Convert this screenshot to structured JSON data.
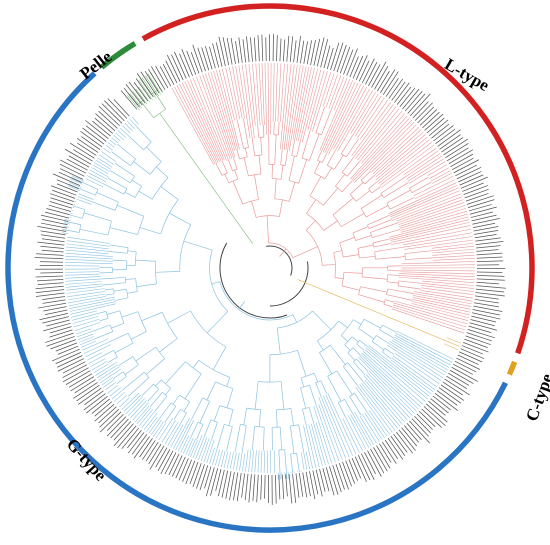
{
  "figure": {
    "clades": [
      {
        "name": "Pelle",
        "color": "#2e8b3a",
        "leaves": 4
      },
      {
        "name": "L-type",
        "color": "#d32020",
        "leaves": 150
      },
      {
        "name": "C-type",
        "color": "#e0a020",
        "leaves": 4
      },
      {
        "name": "G-type",
        "color": "#2a74c4",
        "leaves": 230
      }
    ],
    "branch_colors": {
      "Pelle": "#8bc48b",
      "L-type": "#e89a9a",
      "C-type": "#e6b860",
      "G-type": "#8cc2e0",
      "root": "#444444"
    }
  }
}
